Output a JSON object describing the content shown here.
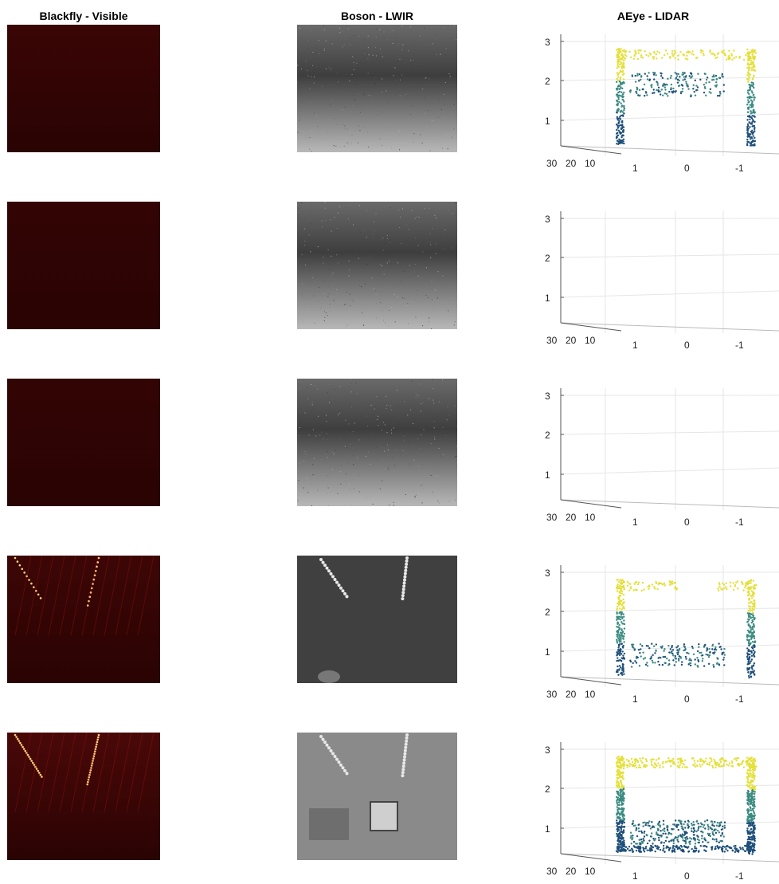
{
  "columns": [
    {
      "key": "visible",
      "title": "Blackfly - Visible"
    },
    {
      "key": "lwir",
      "title": "Boson - LWIR"
    },
    {
      "key": "lidar",
      "title": "AEye - LIDAR"
    }
  ],
  "lidar_axes": {
    "y_ticks": [
      "1",
      "2",
      "3"
    ],
    "depth_ticks": [
      "30",
      "20",
      "10"
    ],
    "x_ticks": [
      "1",
      "0",
      "-1"
    ]
  },
  "rows": [
    {
      "visible": {
        "base": "#3a0505",
        "lights": "none"
      },
      "lwir": {
        "tone": "noisy",
        "base": "#5a5a5a"
      },
      "lidar": {
        "density": "medium"
      }
    },
    {
      "visible": {
        "base": "#330404",
        "lights": "none"
      },
      "lwir": {
        "tone": "noisy",
        "base": "#606060"
      },
      "lidar": {
        "density": "empty"
      }
    },
    {
      "visible": {
        "base": "#330404",
        "lights": "none"
      },
      "lwir": {
        "tone": "noisy",
        "base": "#5e5e5e"
      },
      "lidar": {
        "density": "empty"
      }
    },
    {
      "visible": {
        "base": "#3d0606",
        "lights": "some"
      },
      "lwir": {
        "tone": "scene",
        "base": "#404040"
      },
      "lidar": {
        "density": "frame"
      }
    },
    {
      "visible": {
        "base": "#4a0808",
        "lights": "many"
      },
      "lwir": {
        "tone": "scene",
        "base": "#8a8a8a"
      },
      "lidar": {
        "density": "dense"
      }
    }
  ],
  "colors": {
    "lidar_low": "#1e4f7a",
    "lidar_mid": "#3a8a80",
    "lidar_high": "#e3e03a",
    "grid": "#e6e6e6"
  }
}
